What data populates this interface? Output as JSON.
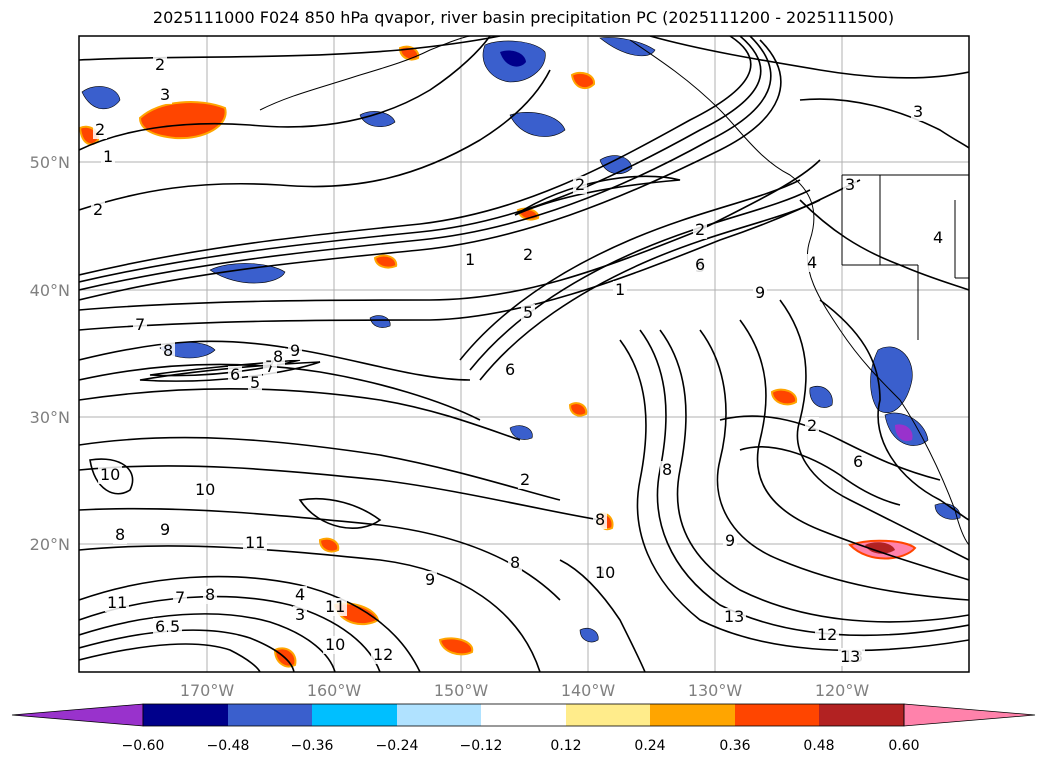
{
  "title": "2025111000 F024 850 hPa qvapor, river basin precipitation PC (2025111200 - 2025111500)",
  "map": {
    "lat_labels": [
      "50°N",
      "40°N",
      "30°N",
      "20°N"
    ],
    "lon_labels": [
      "170°W",
      "160°W",
      "150°W",
      "140°W",
      "130°W",
      "120°W"
    ],
    "contour_labels": [
      "2",
      "3",
      "2",
      "1",
      "2",
      "2",
      "3",
      "1",
      "2",
      "1",
      "2",
      "3",
      "4",
      "5",
      "6",
      "7",
      "8",
      "9",
      "8",
      "7",
      "6",
      "5",
      "3",
      "4",
      "9",
      "8",
      "10",
      "10",
      "11",
      "11",
      "12",
      "13",
      "11",
      "10",
      "9",
      "8",
      "7",
      "6",
      "5",
      "4",
      "3",
      "2",
      "6",
      "9",
      "8",
      "2",
      "3",
      "13",
      "12",
      "13",
      "10",
      "8",
      "6",
      "8",
      "9"
    ]
  },
  "colorbar": {
    "tick_labels": [
      "−0.60",
      "−0.48",
      "−0.36",
      "−0.24",
      "−0.12",
      "0.12",
      "0.24",
      "0.36",
      "0.48",
      "0.60"
    ],
    "colors": [
      "#9932cc",
      "#00008b",
      "#3a5fcd",
      "#00bfff",
      "#b0e2ff",
      "#ffffff",
      "#ffec8b",
      "#ffa500",
      "#ff4500",
      "#b22222",
      "#ff82ab"
    ]
  }
}
